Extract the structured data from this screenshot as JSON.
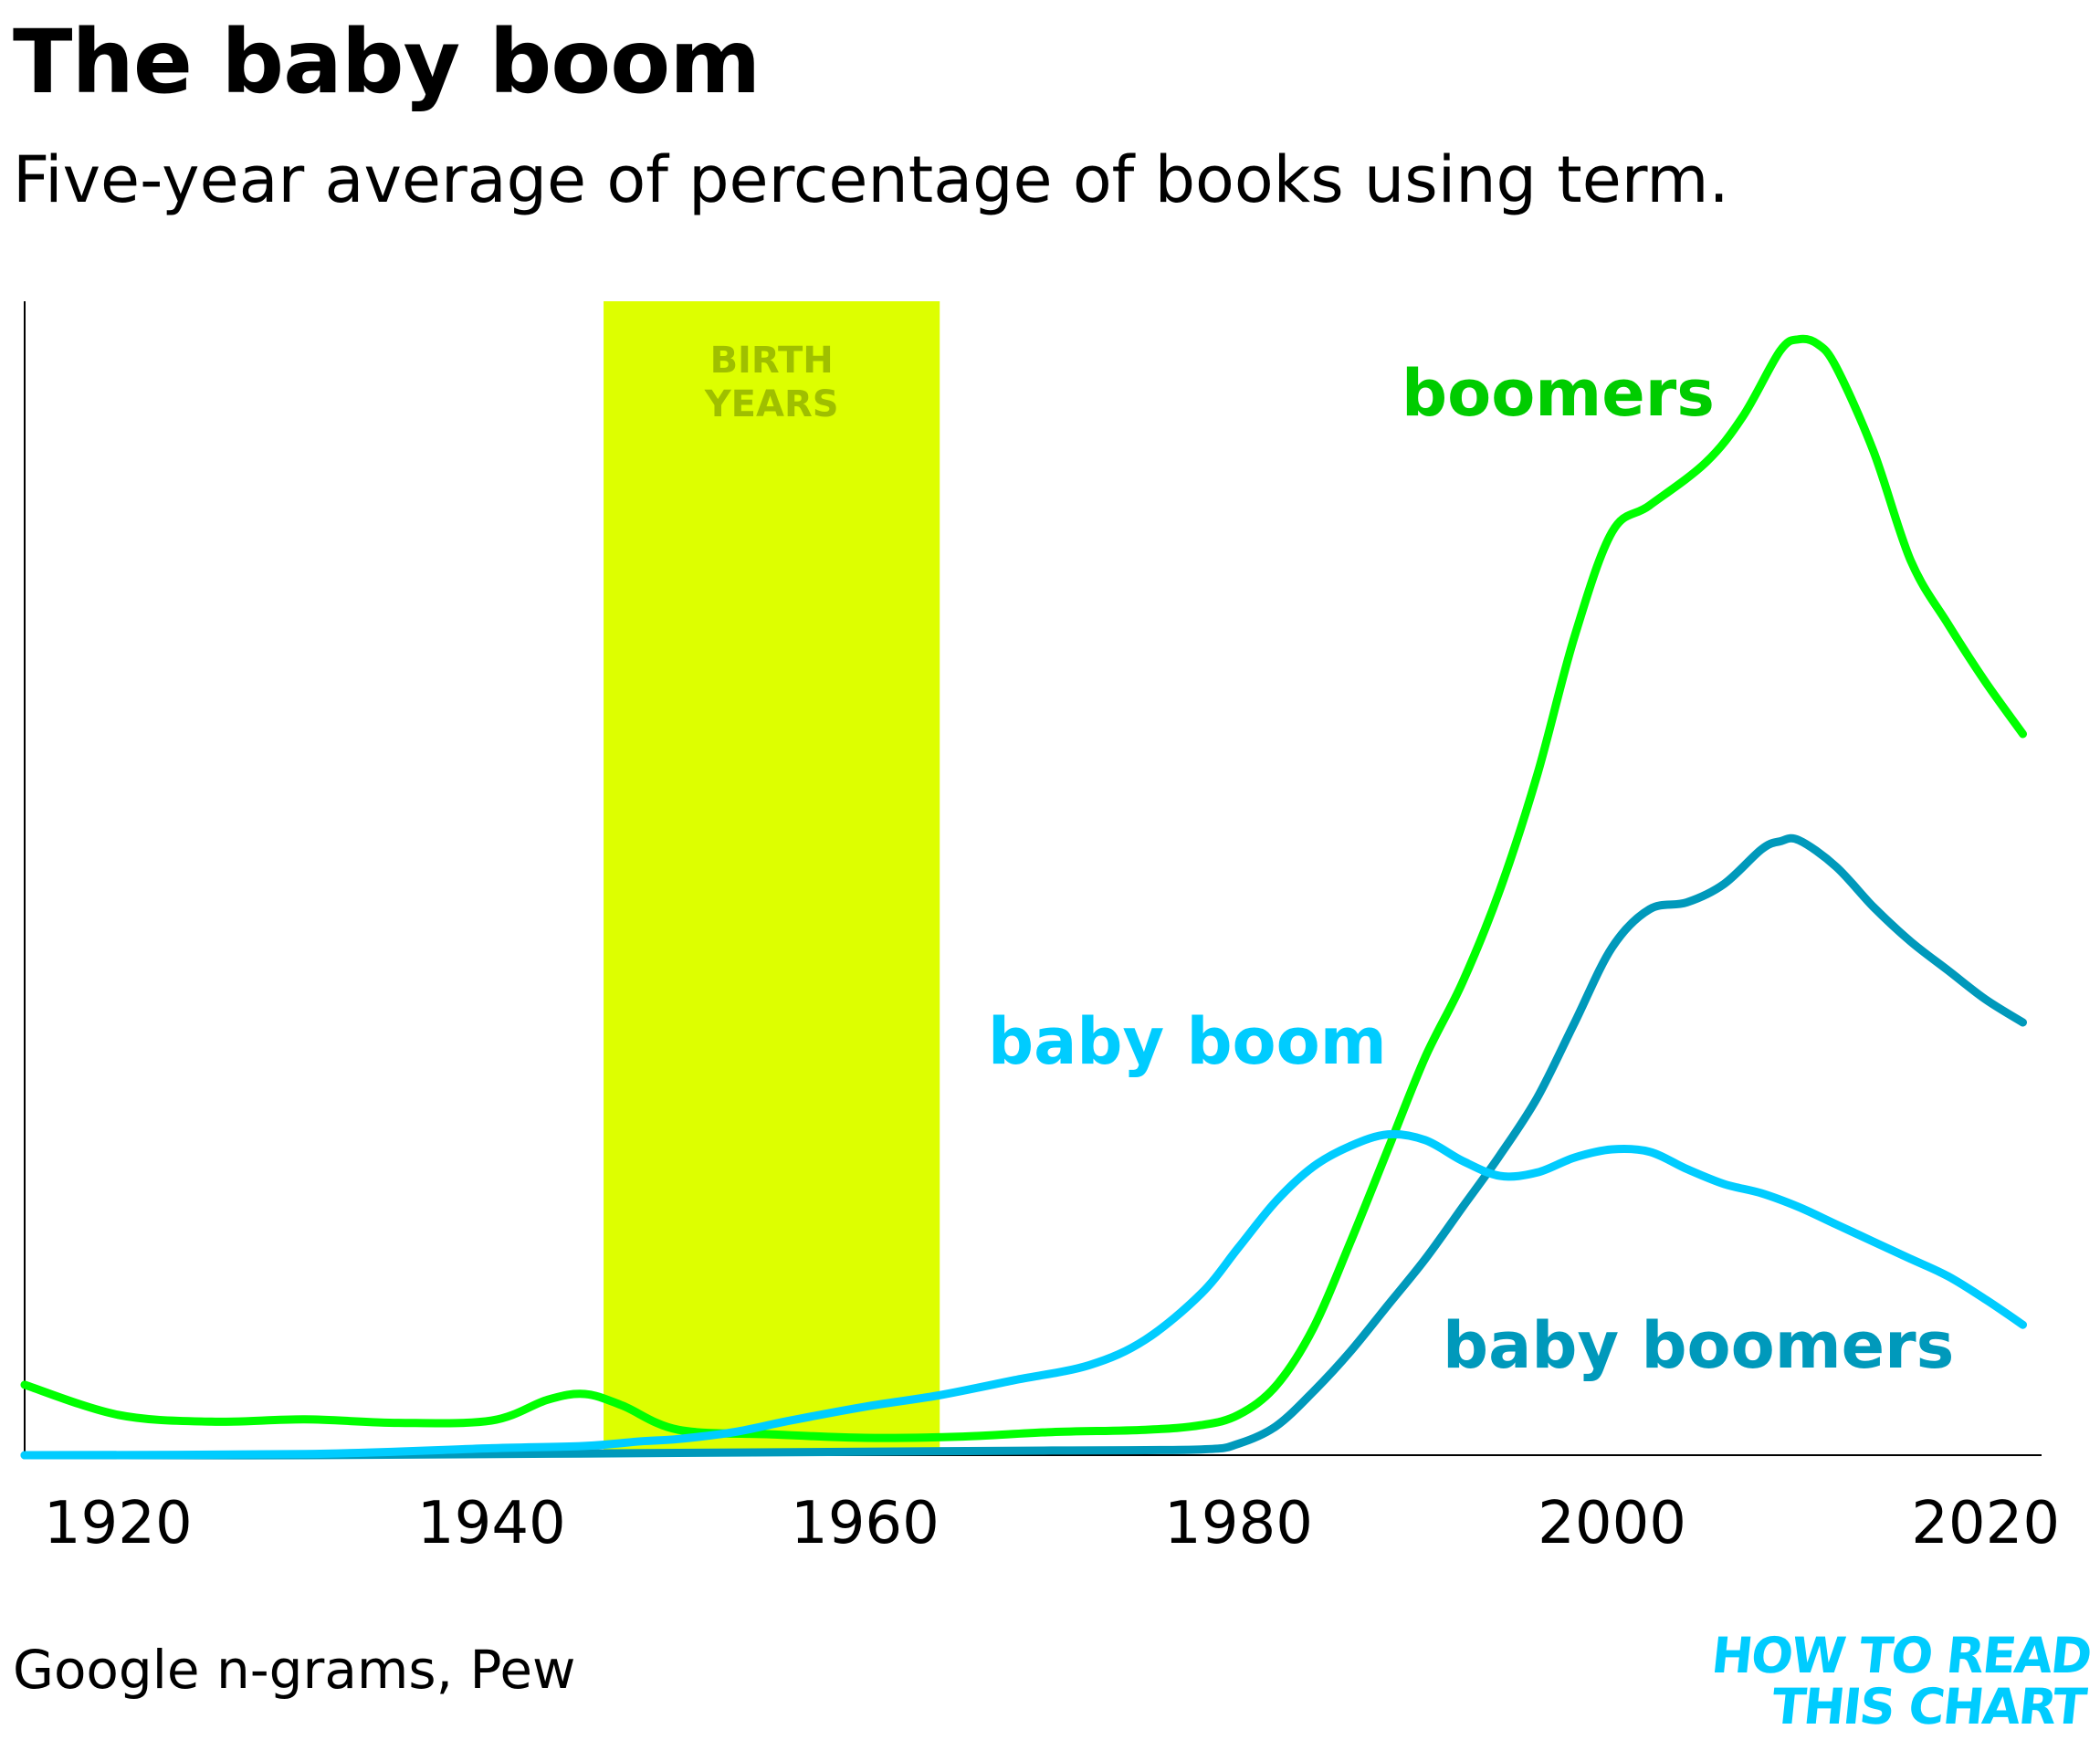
{
  "header": {
    "title": "The baby boom",
    "subtitle": "Five-year average of percentage of books using term."
  },
  "footer": {
    "source": "Google n-grams, Pew",
    "logo_line1": "HOW TO READ",
    "logo_line2": "THIS CHART"
  },
  "chart_data": {
    "type": "line",
    "title": "The baby boom",
    "subtitle": "Five-year average of percentage of books using term.",
    "xlabel": "",
    "ylabel": "",
    "xlim": [
      1915,
      2023
    ],
    "ylim": [
      0,
      100
    ],
    "x_ticks": [
      1920,
      1940,
      1960,
      1980,
      2000,
      2020
    ],
    "y_axis_labels_shown": false,
    "grid": false,
    "legend": "direct labels on chart",
    "highlight_band": {
      "label_line1": "BIRTH",
      "label_line2": "YEARS",
      "x_start": 1946,
      "x_end": 1964,
      "color": "#ddff00",
      "label_color": "#9fbf00"
    },
    "series": [
      {
        "name": "boomers",
        "color": "#00ff00",
        "label_color": "#00cc00",
        "x": [
          1915,
          1920,
          1925,
          1930,
          1935,
          1940,
          1943,
          1945,
          1947,
          1950,
          1955,
          1960,
          1965,
          1970,
          1975,
          1978,
          1980,
          1982,
          1984,
          1986,
          1988,
          1990,
          1992,
          1994,
          1996,
          1998,
          2000,
          2002,
          2005,
          2007,
          2009,
          2010,
          2011,
          2012,
          2014,
          2016,
          2018,
          2020,
          2022
        ],
        "y": [
          6.1,
          3.5,
          2.9,
          3.1,
          2.8,
          3.0,
          4.8,
          5.3,
          4.3,
          2.2,
          1.8,
          1.5,
          1.6,
          2.0,
          2.2,
          2.6,
          3.5,
          6.0,
          11.0,
          18.5,
          26.5,
          34.5,
          41.0,
          49.0,
          59.0,
          71.0,
          80.0,
          82.3,
          86.0,
          90.0,
          95.7,
          96.7,
          96.3,
          94.3,
          87.0,
          77.5,
          72.0,
          67.0,
          62.5
        ]
      },
      {
        "name": "baby boomers",
        "color": "#0099bb",
        "label_color": "#0099bb",
        "x": [
          1915,
          1930,
          1950,
          1970,
          1978,
          1980,
          1982,
          1984,
          1986,
          1988,
          1990,
          1992,
          1994,
          1996,
          1998,
          2000,
          2002,
          2004,
          2006,
          2008,
          2009,
          2010,
          2012,
          2014,
          2016,
          2018,
          2020,
          2022
        ],
        "y": [
          0,
          0,
          0.2,
          0.4,
          0.5,
          1.0,
          2.5,
          5.5,
          9.0,
          13.0,
          17.0,
          21.5,
          26.0,
          31.0,
          37.5,
          44.0,
          47.3,
          47.9,
          49.5,
          52.5,
          53.2,
          53.3,
          51.0,
          47.5,
          44.5,
          42.0,
          39.5,
          37.5
        ]
      },
      {
        "name": "baby boom",
        "color": "#00ccff",
        "label_color": "#00ccff",
        "x": [
          1915,
          1930,
          1940,
          1945,
          1948,
          1950,
          1953,
          1956,
          1960,
          1964,
          1968,
          1972,
          1975,
          1978,
          1980,
          1982,
          1984,
          1986,
          1988,
          1990,
          1992,
          1994,
          1996,
          1998,
          2000,
          2002,
          2004,
          2006,
          2008,
          2010,
          2012,
          2014,
          2016,
          2018,
          2020,
          2022
        ],
        "y": [
          0,
          0.1,
          0.6,
          0.8,
          1.2,
          1.4,
          2.0,
          3.0,
          4.2,
          5.2,
          6.5,
          7.8,
          10.0,
          14.0,
          18.0,
          22.0,
          25.0,
          26.8,
          27.8,
          27.3,
          25.5,
          24.2,
          24.5,
          25.8,
          26.5,
          26.3,
          24.8,
          23.5,
          22.7,
          21.5,
          20.0,
          18.5,
          17.0,
          15.5,
          13.5,
          11.3
        ]
      }
    ],
    "series_label_positions": {
      "boomers": "near peak, left of curve",
      "baby boom": "above the 1988 hump",
      "baby boomers": "below its curve, right side"
    }
  }
}
